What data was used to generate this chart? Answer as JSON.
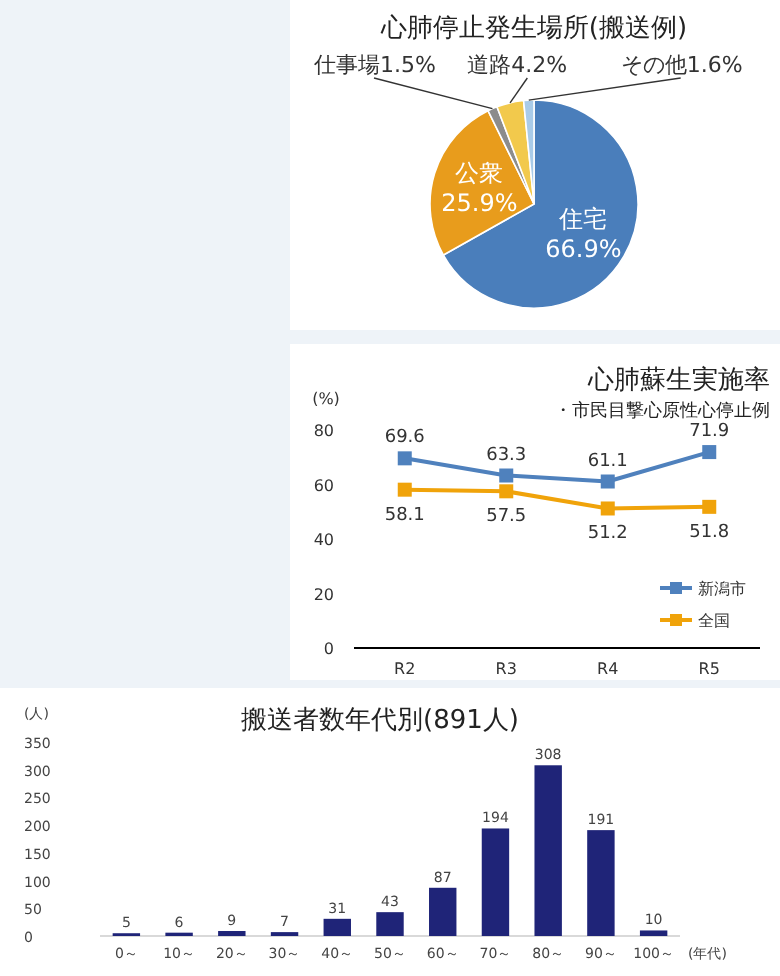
{
  "chart_data": [
    {
      "type": "pie",
      "title": "心肺停止発生場所(搬送例)",
      "categories": [
        "住宅",
        "公衆",
        "仕事場",
        "道路",
        "その他"
      ],
      "values": [
        66.9,
        25.9,
        1.5,
        4.2,
        1.6
      ],
      "colors": [
        "#4a7ebb",
        "#e89c1c",
        "#8c8c8c",
        "#f2c94c",
        "#a9cbe8"
      ],
      "value_labels": [
        "66.9%",
        "25.9%",
        "1.5%",
        "4.2%",
        "1.6%"
      ]
    },
    {
      "type": "line",
      "title": "心肺蘇生実施率",
      "subtitle": "・市民目撃心原性心停止例",
      "ylabel": "(%)",
      "categories": [
        "R2",
        "R3",
        "R4",
        "R5"
      ],
      "ylim": [
        0,
        80
      ],
      "yticks": [
        0,
        20,
        40,
        60,
        80
      ],
      "marker": "square",
      "legend": "bottom right",
      "data_labels": true,
      "series": [
        {
          "name": "新潟市",
          "color": "#4f81bd",
          "values": [
            69.6,
            63.3,
            61.1,
            71.9
          ]
        },
        {
          "name": "全国",
          "color": "#f0a30a",
          "values": [
            58.1,
            57.5,
            51.2,
            51.8
          ]
        }
      ]
    },
    {
      "type": "bar",
      "title": "搬送者数年代別(891人)",
      "ylabel": "(人)",
      "xlabel": "(年代)",
      "categories": [
        "0～",
        "10～",
        "20～",
        "30～",
        "40～",
        "50～",
        "60～",
        "70～",
        "80～",
        "90～",
        "100～"
      ],
      "values": [
        5,
        6,
        9,
        7,
        31,
        43,
        87,
        194,
        308,
        191,
        10
      ],
      "color": "#1f2478",
      "ylim": [
        0,
        350
      ],
      "yticks": [
        0,
        50,
        100,
        150,
        200,
        250,
        300,
        350
      ],
      "data_labels": true
    }
  ]
}
